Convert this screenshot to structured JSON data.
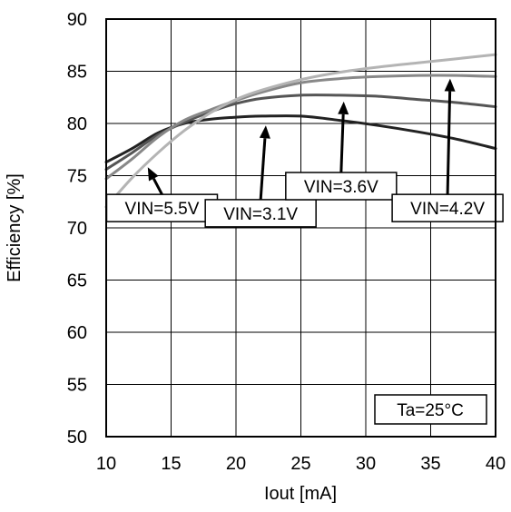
{
  "chart_data": {
    "type": "line",
    "xlabel": "Iout [mA]",
    "ylabel": "Efficiency [%]",
    "xlim": [
      10,
      40
    ],
    "ylim": [
      50,
      90
    ],
    "x_ticks": [
      10,
      15,
      20,
      25,
      30,
      35,
      40
    ],
    "y_ticks": [
      50,
      55,
      60,
      65,
      70,
      75,
      80,
      85,
      90
    ],
    "x_tick_labels": [
      "10",
      "15",
      "20",
      "25",
      "30",
      "35",
      "40"
    ],
    "y_tick_labels": [
      "50",
      "55",
      "60",
      "65",
      "70",
      "75",
      "80",
      "85",
      "90"
    ],
    "grid": true,
    "annotation": "Ta=25°C",
    "series": [
      {
        "callout": "VIN=3.1V",
        "color": "#222222",
        "x": [
          10,
          12,
          14,
          16,
          18,
          20,
          22,
          25,
          28,
          31,
          34,
          37,
          40
        ],
        "y": [
          76.3,
          77.6,
          79.1,
          80.0,
          80.4,
          80.6,
          80.7,
          80.7,
          80.3,
          79.8,
          79.2,
          78.5,
          77.6
        ]
      },
      {
        "callout": "VIN=3.6V",
        "color": "#555555",
        "x": [
          10,
          12,
          14,
          16,
          18,
          20,
          22,
          25,
          28,
          31,
          34,
          37,
          40
        ],
        "y": [
          75.6,
          77.2,
          78.9,
          80.1,
          81.1,
          81.9,
          82.4,
          82.7,
          82.7,
          82.6,
          82.3,
          82.0,
          81.6
        ]
      },
      {
        "callout": "VIN=4.2V",
        "color": "#888888",
        "x": [
          10,
          12,
          14,
          16,
          18,
          20,
          22,
          25,
          28,
          31,
          34,
          37,
          40
        ],
        "y": [
          74.7,
          76.6,
          78.7,
          80.3,
          81.3,
          82.2,
          83.0,
          83.9,
          84.3,
          84.5,
          84.6,
          84.6,
          84.5
        ]
      },
      {
        "callout": "VIN=5.5V",
        "color": "#b4b4b4",
        "x": [
          10,
          12,
          14,
          16,
          18,
          20,
          22,
          25,
          28,
          31,
          34,
          37,
          40
        ],
        "y": [
          72.0,
          74.8,
          77.2,
          79.3,
          81.0,
          82.3,
          83.2,
          84.2,
          84.9,
          85.4,
          85.8,
          86.2,
          86.6
        ]
      }
    ],
    "callouts": [
      {
        "label": "VIN=5.5V",
        "box_at": [
          14.3,
          71.9
        ],
        "arrow_to": [
          13.2,
          75.8
        ]
      },
      {
        "label": "VIN=3.1V",
        "box_at": [
          21.9,
          71.4
        ],
        "arrow_to": [
          22.3,
          79.8
        ]
      },
      {
        "label": "VIN=3.6V",
        "box_at": [
          28.1,
          74.0
        ],
        "arrow_to": [
          28.3,
          82.1
        ]
      },
      {
        "label": "VIN=4.2V",
        "box_at": [
          36.3,
          71.9
        ],
        "arrow_to": [
          36.5,
          84.3
        ]
      }
    ]
  }
}
